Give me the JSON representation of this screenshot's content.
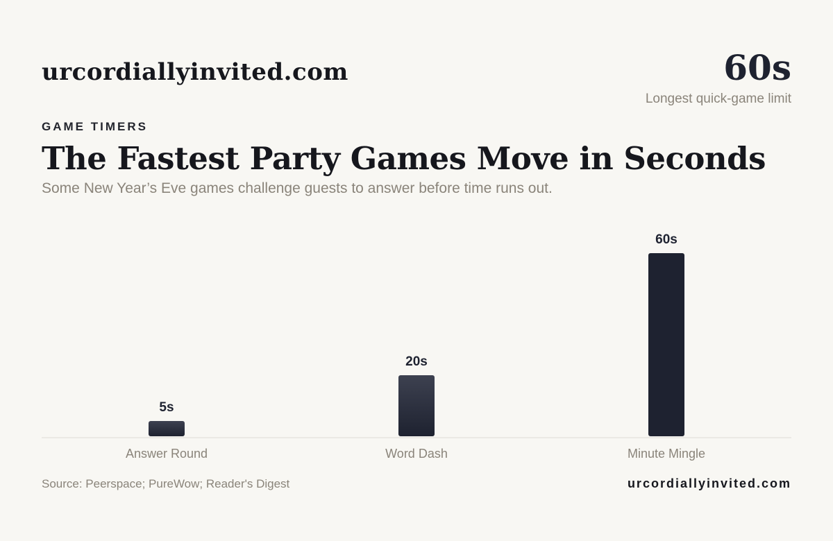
{
  "header": {
    "brand": "urcordiallyinvited.com",
    "stat_value": "60s",
    "stat_label": "Longest quick-game limit"
  },
  "eyebrow": "GAME TIMERS",
  "title": "The Fastest Party Games Move in Seconds",
  "subtitle": "Some New Year’s Eve games challenge guests to answer before time runs out.",
  "footer": {
    "source": "Source: Peerspace; PureWow; Reader's Digest",
    "brand": "urcordiallyinvited.com"
  },
  "colors": {
    "background": "#f8f7f3",
    "bar_dark": "#1e2230",
    "bar_light": "#3d4150",
    "axis_line": "#dedbd4",
    "category_label": "#8a847a",
    "value_label": "#1e2230"
  },
  "chart_data": {
    "type": "bar",
    "categories": [
      "Answer Round",
      "Word Dash",
      "Minute Mingle"
    ],
    "values": [
      5,
      20,
      60
    ],
    "value_labels": [
      "5s",
      "20s",
      "60s"
    ],
    "ylim": [
      0,
      60
    ],
    "grid": false,
    "legend": "none"
  }
}
